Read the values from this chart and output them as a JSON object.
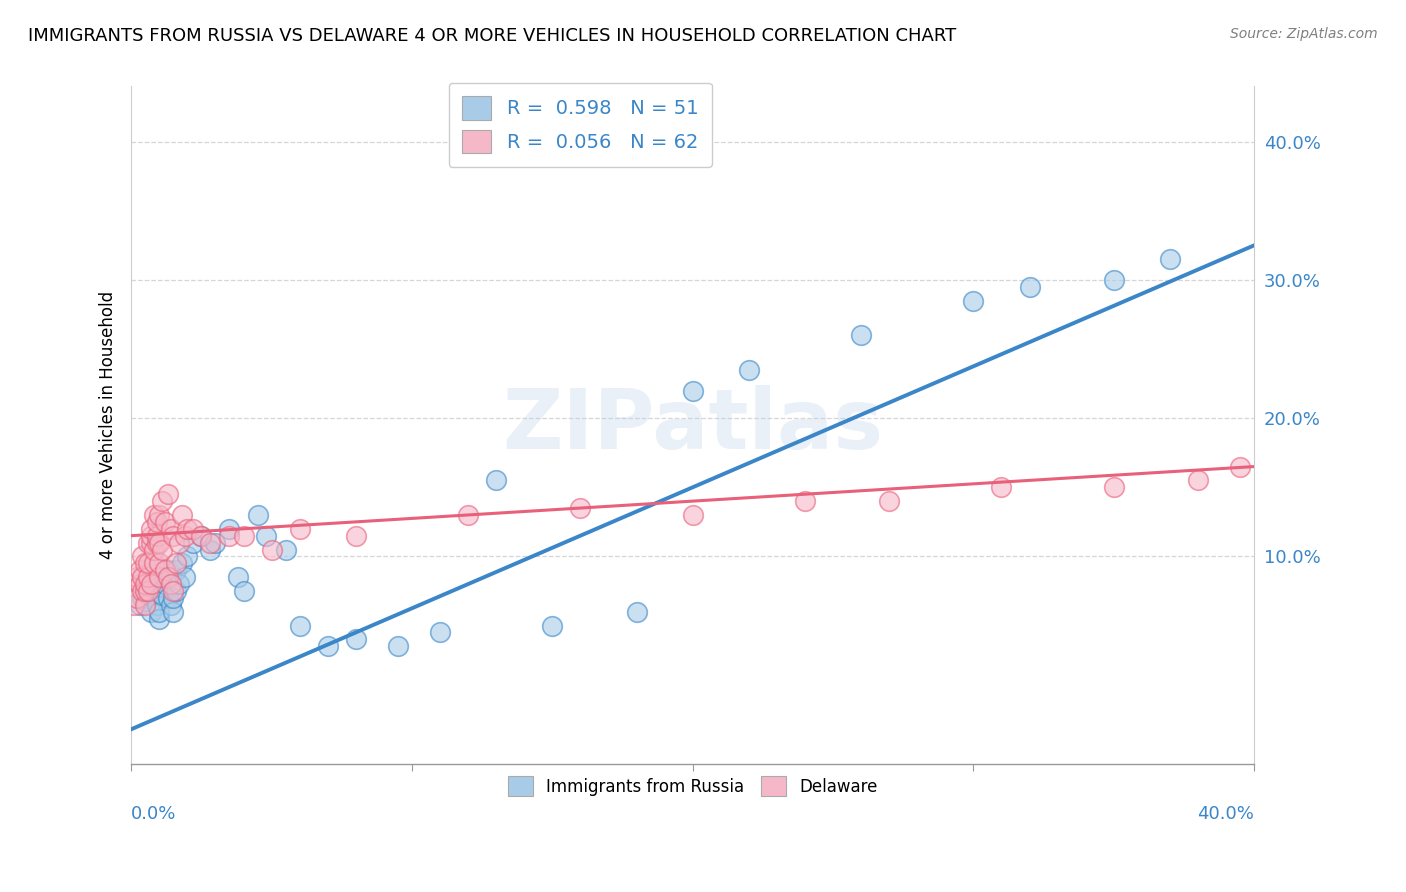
{
  "title": "IMMIGRANTS FROM RUSSIA VS DELAWARE 4 OR MORE VEHICLES IN HOUSEHOLD CORRELATION CHART",
  "source": "Source: ZipAtlas.com",
  "ylabel": "4 or more Vehicles in Household",
  "ytick_values": [
    0.1,
    0.2,
    0.3,
    0.4
  ],
  "xlim": [
    0.0,
    0.4
  ],
  "ylim": [
    -0.05,
    0.44
  ],
  "legend_blue_label": "R =  0.598   N = 51",
  "legend_pink_label": "R =  0.056   N = 62",
  "legend_blue_scatter": "Immigrants from Russia",
  "legend_pink_scatter": "Delaware",
  "blue_color": "#a8cce8",
  "blue_color_dark": "#3a86c8",
  "pink_color": "#f5b8c8",
  "pink_color_dark": "#e8607a",
  "blue_line_color": "#3a86c8",
  "pink_line_color": "#e8607a",
  "watermark": "ZIPatlas",
  "blue_scatter_x": [
    0.003,
    0.004,
    0.005,
    0.006,
    0.007,
    0.008,
    0.008,
    0.009,
    0.009,
    0.01,
    0.01,
    0.011,
    0.012,
    0.012,
    0.013,
    0.013,
    0.014,
    0.014,
    0.015,
    0.015,
    0.016,
    0.016,
    0.017,
    0.018,
    0.019,
    0.02,
    0.022,
    0.025,
    0.028,
    0.03,
    0.035,
    0.038,
    0.04,
    0.045,
    0.048,
    0.055,
    0.06,
    0.07,
    0.08,
    0.095,
    0.11,
    0.13,
    0.15,
    0.18,
    0.2,
    0.22,
    0.26,
    0.3,
    0.32,
    0.35,
    0.37
  ],
  "blue_scatter_y": [
    0.065,
    0.07,
    0.068,
    0.072,
    0.06,
    0.075,
    0.08,
    0.065,
    0.078,
    0.055,
    0.06,
    0.072,
    0.08,
    0.085,
    0.07,
    0.09,
    0.065,
    0.085,
    0.06,
    0.07,
    0.075,
    0.09,
    0.08,
    0.095,
    0.085,
    0.1,
    0.11,
    0.115,
    0.105,
    0.11,
    0.12,
    0.085,
    0.075,
    0.13,
    0.115,
    0.105,
    0.05,
    0.035,
    0.04,
    0.035,
    0.045,
    0.155,
    0.05,
    0.06,
    0.22,
    0.235,
    0.26,
    0.285,
    0.295,
    0.3,
    0.315
  ],
  "pink_scatter_x": [
    0.001,
    0.002,
    0.002,
    0.003,
    0.003,
    0.004,
    0.004,
    0.004,
    0.005,
    0.005,
    0.005,
    0.005,
    0.006,
    0.006,
    0.006,
    0.006,
    0.007,
    0.007,
    0.007,
    0.007,
    0.008,
    0.008,
    0.008,
    0.009,
    0.009,
    0.009,
    0.01,
    0.01,
    0.01,
    0.01,
    0.011,
    0.011,
    0.012,
    0.012,
    0.013,
    0.013,
    0.014,
    0.014,
    0.015,
    0.015,
    0.016,
    0.017,
    0.018,
    0.019,
    0.02,
    0.022,
    0.025,
    0.028,
    0.035,
    0.04,
    0.05,
    0.06,
    0.08,
    0.12,
    0.16,
    0.2,
    0.24,
    0.27,
    0.31,
    0.35,
    0.38,
    0.395
  ],
  "pink_scatter_y": [
    0.065,
    0.07,
    0.085,
    0.08,
    0.09,
    0.075,
    0.085,
    0.1,
    0.065,
    0.075,
    0.08,
    0.095,
    0.075,
    0.085,
    0.095,
    0.11,
    0.08,
    0.11,
    0.115,
    0.12,
    0.095,
    0.105,
    0.13,
    0.11,
    0.115,
    0.125,
    0.085,
    0.095,
    0.11,
    0.13,
    0.105,
    0.14,
    0.09,
    0.125,
    0.085,
    0.145,
    0.08,
    0.12,
    0.075,
    0.115,
    0.095,
    0.11,
    0.13,
    0.115,
    0.12,
    0.12,
    0.115,
    0.11,
    0.115,
    0.115,
    0.105,
    0.12,
    0.115,
    0.13,
    0.135,
    0.13,
    0.14,
    0.14,
    0.15,
    0.15,
    0.155,
    0.165
  ],
  "blue_line_x": [
    0.0,
    0.4
  ],
  "blue_line_y": [
    -0.025,
    0.325
  ],
  "pink_line_x": [
    0.0,
    0.4
  ],
  "pink_line_y": [
    0.115,
    0.165
  ],
  "grid_color": "#cccccc",
  "background_color": "#ffffff"
}
